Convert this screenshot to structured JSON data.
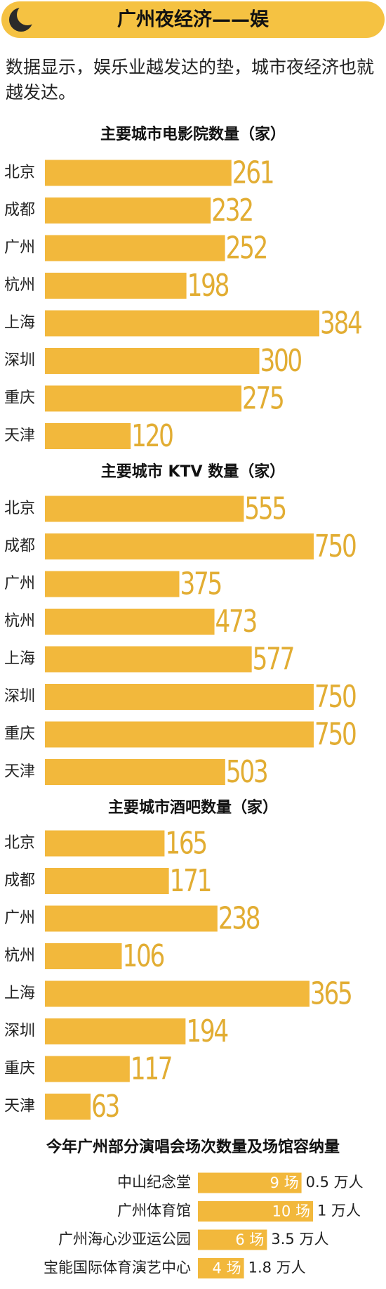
{
  "header": {
    "title": "广州夜经济——娱"
  },
  "intro": "数据显示，娱乐业越发达的垫，城市夜经济也就越发达。",
  "chart_data": [
    {
      "type": "bar",
      "title": "主要城市电影院数量（家）",
      "categories": [
        "北京",
        "成都",
        "广州",
        "杭州",
        "上海",
        "深圳",
        "重庆",
        "天津"
      ],
      "values": [
        261,
        232,
        252,
        198,
        384,
        300,
        275,
        120
      ],
      "color": "#f2b83c"
    },
    {
      "type": "bar",
      "title": "主要城市 KTV 数量（家）",
      "categories": [
        "北京",
        "成都",
        "广州",
        "杭州",
        "上海",
        "深圳",
        "重庆",
        "天津"
      ],
      "values": [
        555,
        750,
        375,
        473,
        577,
        750,
        750,
        503
      ],
      "color": "#f2b83c"
    },
    {
      "type": "bar",
      "title": "主要城市酒吧数量（家）",
      "categories": [
        "北京",
        "成都",
        "广州",
        "杭州",
        "上海",
        "深圳",
        "重庆",
        "天津"
      ],
      "values": [
        165,
        171,
        238,
        106,
        365,
        194,
        117,
        63
      ],
      "color": "#f2b83c"
    },
    {
      "type": "bar",
      "title": "今年广州部分演唱会场次数量及场馆容纳量",
      "categories": [
        "中山纪念堂",
        "广州体育馆",
        "广州海心沙亚运公园",
        "宝能国际体育演艺中心"
      ],
      "values": [
        9,
        10,
        6,
        4
      ],
      "value_labels": [
        "9 场",
        "10 场",
        "6 场",
        "4 场"
      ],
      "color": "#f2b83c",
      "capacity": {
        "values": [
          0.5,
          1,
          3.5,
          1.8
        ],
        "value_labels": [
          "0.5 万人",
          "1 万人",
          "3.5 万人",
          "1.8 万人"
        ]
      }
    }
  ]
}
